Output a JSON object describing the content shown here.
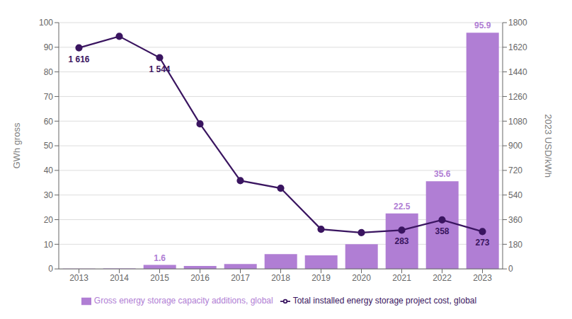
{
  "chart_data": {
    "type": "bar",
    "categories": [
      "2013",
      "2014",
      "2015",
      "2016",
      "2017",
      "2018",
      "2019",
      "2020",
      "2021",
      "2022",
      "2023"
    ],
    "series": [
      {
        "name": "Gross energy storage capacity additions, global",
        "type": "bar",
        "color": "#b07ed4",
        "values": [
          0.15,
          0.2,
          1.6,
          1.2,
          2.0,
          6.0,
          5.5,
          10.0,
          22.5,
          35.6,
          95.9
        ],
        "data_labels": true,
        "value_labels": [
          null,
          null,
          "1.6",
          null,
          null,
          null,
          null,
          null,
          "22.5",
          "35.6",
          "95.9"
        ]
      },
      {
        "name": "Total installed energy storage project cost, global",
        "type": "line",
        "axis": "y2",
        "color": "#3a1560",
        "marker": "circle",
        "values": [
          1616,
          1700,
          1544,
          1060,
          645,
          590,
          290,
          265,
          283,
          358,
          273
        ],
        "data_labels": true,
        "value_labels": [
          "1 616",
          null,
          "1 544",
          null,
          null,
          null,
          null,
          null,
          "283",
          "358",
          "273"
        ]
      }
    ],
    "ylabel": "GWh gross",
    "y2label": "2023 USD/kWh",
    "ylim": [
      0,
      100
    ],
    "yticks": [
      0,
      10,
      20,
      30,
      40,
      50,
      60,
      70,
      80,
      90,
      100
    ],
    "y2lim": [
      0,
      1800
    ],
    "y2ticks": [
      0,
      180,
      360,
      540,
      720,
      900,
      1080,
      1260,
      1440,
      1620,
      1800
    ],
    "grid": true,
    "legend": "bottom"
  }
}
